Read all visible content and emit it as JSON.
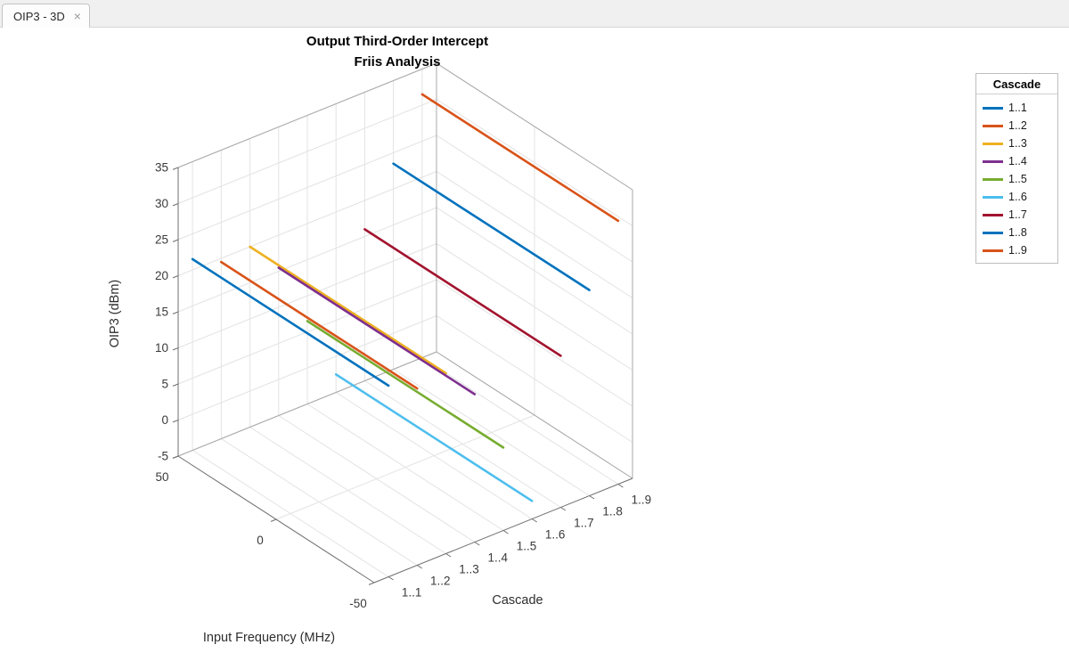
{
  "tab": {
    "title": "OIP3 - 3D",
    "close": "×"
  },
  "chart_data": {
    "type": "line",
    "projection": "3d",
    "title": [
      "Output Third-Order Intercept",
      "Friis Analysis"
    ],
    "xlabel": "Input Frequency (MHz)",
    "ylabel": "Cascade",
    "zlabel": "OIP3 (dBm)",
    "xlim": [
      -50,
      50
    ],
    "xticks": [
      50,
      0,
      -50
    ],
    "ylim": [
      0.5,
      9.5
    ],
    "yticks": [
      1,
      2,
      3,
      4,
      5,
      6,
      7,
      8,
      9
    ],
    "ytick_labels": [
      "1..1",
      "1..2",
      "1..3",
      "1..4",
      "1..5",
      "1..6",
      "1..7",
      "1..8",
      "1..9"
    ],
    "zlim": [
      -5,
      35
    ],
    "zticks": [
      35,
      30,
      25,
      20,
      15,
      10,
      5,
      0,
      -5
    ],
    "grid": true,
    "legend": {
      "title": "Cascade",
      "position": "right-outside"
    },
    "series": [
      {
        "name": "1..1",
        "color": "#0072BD",
        "stage": 1,
        "freq_mhz": [
          -50,
          50
        ],
        "oip3_dbm": 21.5
      },
      {
        "name": "1..2",
        "color": "#D95319",
        "stage": 2,
        "freq_mhz": [
          -50,
          50
        ],
        "oip3_dbm": 19.5
      },
      {
        "name": "1..3",
        "color": "#EDB120",
        "stage": 3,
        "freq_mhz": [
          -50,
          50
        ],
        "oip3_dbm": 20
      },
      {
        "name": "1..4",
        "color": "#7E2F8E",
        "stage": 4,
        "freq_mhz": [
          -50,
          50
        ],
        "oip3_dbm": 15.5
      },
      {
        "name": "1..5",
        "color": "#77AC30",
        "stage": 5,
        "freq_mhz": [
          -50,
          50
        ],
        "oip3_dbm": 6.5
      },
      {
        "name": "1..6",
        "color": "#4DBEEE",
        "stage": 6,
        "freq_mhz": [
          -50,
          50
        ],
        "oip3_dbm": -2.5
      },
      {
        "name": "1..7",
        "color": "#A2142F",
        "stage": 7,
        "freq_mhz": [
          -50,
          50
        ],
        "oip3_dbm": 16
      },
      {
        "name": "1..8",
        "color": "#0072BD",
        "stage": 8,
        "freq_mhz": [
          -50,
          50
        ],
        "oip3_dbm": 23.5
      },
      {
        "name": "1..9",
        "color": "#D95319",
        "stage": 9,
        "freq_mhz": [
          -50,
          50
        ],
        "oip3_dbm": 31.5
      }
    ]
  }
}
